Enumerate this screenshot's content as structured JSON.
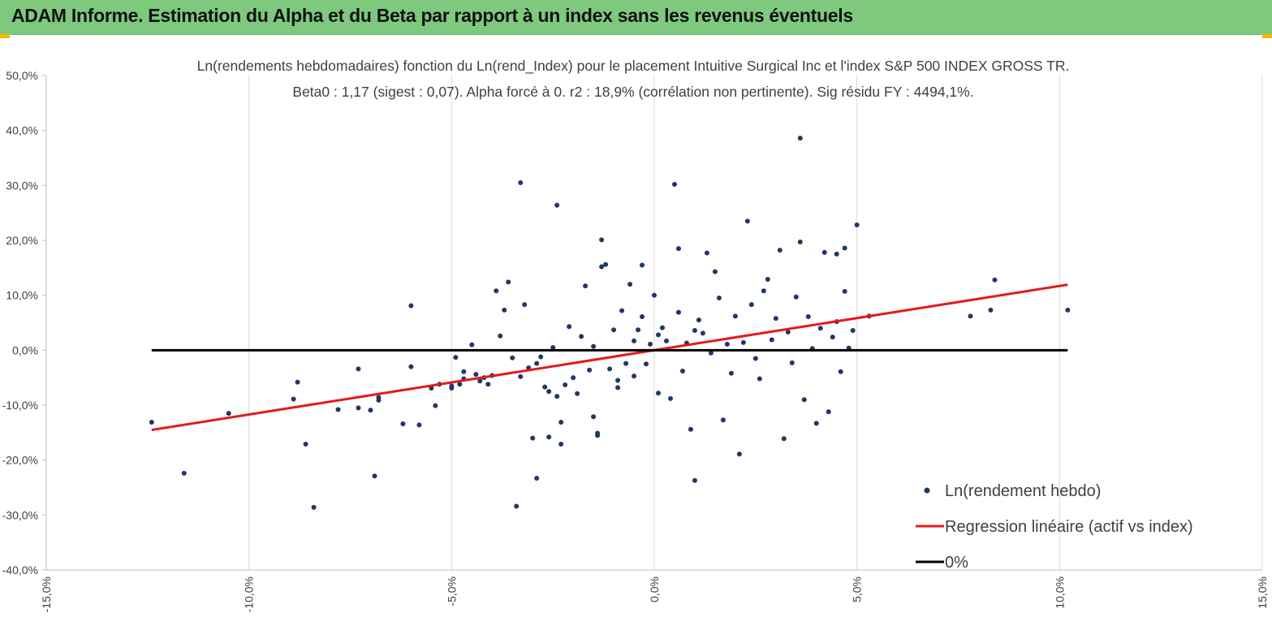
{
  "banner": {
    "title": "ADAM Informe. Estimation du Alpha et du Beta par rapport à un index sans les revenus éventuels",
    "color": "#7fc97f"
  },
  "chart_data": {
    "type": "scatter",
    "title": "Ln(rendements hebdomadaires) fonction du Ln(rend_Index) pour le placement Intuitive Surgical Inc et l'index S&P 500 INDEX GROSS TR.",
    "subtitle": "Beta0 : 1,17 (sigest : 0,07). Alpha forcé à 0. r2 : 18,9% (corrélation non pertinente). Sig résidu FY : 4494,1%.",
    "xlim": [
      -0.15,
      0.15
    ],
    "ylim": [
      -0.4,
      0.5
    ],
    "x_ticks": [
      "-15,0%",
      "-10,0%",
      "-5,0%",
      "0,0%",
      "5,0%",
      "10,0%",
      "15,0%"
    ],
    "y_ticks": [
      "50,0%",
      "40,0%",
      "30,0%",
      "20,0%",
      "10,0%",
      "0,0%",
      "-10,0%",
      "-20,0%",
      "-30,0%",
      "-40,0%"
    ],
    "grid": "vertical",
    "legend_position": "bottom-right",
    "series": [
      {
        "name": "Ln(rendement hebdo)",
        "kind": "scatter",
        "color": "#1f3864",
        "points": [
          [
            -0.124,
            -0.131
          ],
          [
            -0.116,
            -0.224
          ],
          [
            -0.105,
            -0.115
          ],
          [
            -0.089,
            -0.089
          ],
          [
            -0.088,
            -0.058
          ],
          [
            -0.086,
            -0.171
          ],
          [
            -0.084,
            -0.286
          ],
          [
            -0.078,
            -0.108
          ],
          [
            -0.073,
            -0.034
          ],
          [
            -0.073,
            -0.105
          ],
          [
            -0.07,
            -0.109
          ],
          [
            -0.069,
            -0.229
          ],
          [
            -0.068,
            -0.086
          ],
          [
            -0.068,
            -0.091
          ],
          [
            -0.062,
            -0.134
          ],
          [
            -0.06,
            -0.03
          ],
          [
            -0.06,
            0.081
          ],
          [
            -0.058,
            -0.136
          ],
          [
            -0.055,
            -0.069
          ],
          [
            -0.054,
            -0.101
          ],
          [
            -0.053,
            -0.062
          ],
          [
            -0.05,
            -0.069
          ],
          [
            -0.05,
            -0.065
          ],
          [
            -0.049,
            -0.013
          ],
          [
            -0.048,
            -0.062
          ],
          [
            -0.047,
            -0.039
          ],
          [
            -0.047,
            -0.052
          ],
          [
            -0.045,
            0.01
          ],
          [
            -0.044,
            -0.044
          ],
          [
            -0.043,
            -0.056
          ],
          [
            -0.042,
            -0.05
          ],
          [
            -0.041,
            -0.062
          ],
          [
            -0.04,
            -0.046
          ],
          [
            -0.039,
            0.108
          ],
          [
            -0.038,
            0.026
          ],
          [
            -0.037,
            0.073
          ],
          [
            -0.036,
            0.124
          ],
          [
            -0.035,
            -0.014
          ],
          [
            -0.034,
            -0.284
          ],
          [
            -0.033,
            0.305
          ],
          [
            -0.033,
            -0.048
          ],
          [
            -0.032,
            0.083
          ],
          [
            -0.031,
            -0.032
          ],
          [
            -0.03,
            -0.16
          ],
          [
            -0.029,
            -0.024
          ],
          [
            -0.029,
            -0.233
          ],
          [
            -0.028,
            -0.012
          ],
          [
            -0.027,
            -0.067
          ],
          [
            -0.026,
            -0.075
          ],
          [
            -0.026,
            -0.158
          ],
          [
            -0.025,
            0.005
          ],
          [
            -0.024,
            -0.084
          ],
          [
            -0.024,
            0.264
          ],
          [
            -0.023,
            -0.171
          ],
          [
            -0.023,
            -0.131
          ],
          [
            -0.022,
            -0.063
          ],
          [
            -0.021,
            0.043
          ],
          [
            -0.02,
            -0.05
          ],
          [
            -0.019,
            -0.079
          ],
          [
            -0.018,
            0.025
          ],
          [
            -0.017,
            0.117
          ],
          [
            -0.016,
            -0.036
          ],
          [
            -0.015,
            -0.121
          ],
          [
            -0.015,
            0.007
          ],
          [
            -0.014,
            -0.155
          ],
          [
            -0.014,
            -0.151
          ],
          [
            -0.013,
            0.152
          ],
          [
            -0.013,
            0.201
          ],
          [
            -0.012,
            0.156
          ],
          [
            -0.011,
            -0.034
          ],
          [
            -0.01,
            0.037
          ],
          [
            -0.009,
            -0.055
          ],
          [
            -0.009,
            -0.068
          ],
          [
            -0.008,
            0.072
          ],
          [
            -0.007,
            -0.024
          ],
          [
            -0.006,
            0.12
          ],
          [
            -0.005,
            0.017
          ],
          [
            -0.005,
            -0.047
          ],
          [
            -0.004,
            0.037
          ],
          [
            -0.003,
            0.061
          ],
          [
            -0.003,
            0.155
          ],
          [
            -0.002,
            -0.025
          ],
          [
            -0.001,
            0.011
          ],
          [
            0.0,
            0.1
          ],
          [
            0.001,
            -0.078
          ],
          [
            0.001,
            0.028
          ],
          [
            0.002,
            0.041
          ],
          [
            0.003,
            0.017
          ],
          [
            0.004,
            -0.088
          ],
          [
            0.005,
            0.302
          ],
          [
            0.006,
            0.185
          ],
          [
            0.006,
            0.069
          ],
          [
            0.007,
            -0.038
          ],
          [
            0.008,
            0.013
          ],
          [
            0.009,
            -0.144
          ],
          [
            0.01,
            0.036
          ],
          [
            0.01,
            -0.237
          ],
          [
            0.011,
            0.055
          ],
          [
            0.012,
            0.031
          ],
          [
            0.013,
            0.177
          ],
          [
            0.014,
            -0.005
          ],
          [
            0.015,
            0.143
          ],
          [
            0.016,
            0.095
          ],
          [
            0.017,
            -0.127
          ],
          [
            0.018,
            0.011
          ],
          [
            0.019,
            -0.042
          ],
          [
            0.02,
            0.062
          ],
          [
            0.021,
            -0.189
          ],
          [
            0.022,
            0.014
          ],
          [
            0.023,
            0.235
          ],
          [
            0.024,
            0.083
          ],
          [
            0.025,
            -0.015
          ],
          [
            0.026,
            -0.052
          ],
          [
            0.027,
            0.108
          ],
          [
            0.028,
            0.129
          ],
          [
            0.029,
            0.019
          ],
          [
            0.03,
            0.058
          ],
          [
            0.031,
            0.182
          ],
          [
            0.032,
            -0.161
          ],
          [
            0.033,
            0.033
          ],
          [
            0.034,
            -0.023
          ],
          [
            0.035,
            0.097
          ],
          [
            0.036,
            0.197
          ],
          [
            0.036,
            0.386
          ],
          [
            0.037,
            -0.09
          ],
          [
            0.038,
            0.061
          ],
          [
            0.039,
            0.003
          ],
          [
            0.04,
            -0.133
          ],
          [
            0.041,
            0.04
          ],
          [
            0.042,
            0.178
          ],
          [
            0.043,
            -0.112
          ],
          [
            0.044,
            0.024
          ],
          [
            0.045,
            0.052
          ],
          [
            0.045,
            0.175
          ],
          [
            0.046,
            -0.039
          ],
          [
            0.047,
            0.186
          ],
          [
            0.047,
            0.107
          ],
          [
            0.048,
            0.004
          ],
          [
            0.049,
            0.036
          ],
          [
            0.05,
            0.228
          ],
          [
            0.053,
            0.062
          ],
          [
            0.078,
            0.062
          ],
          [
            0.083,
            0.073
          ],
          [
            0.084,
            0.128
          ],
          [
            0.102,
            0.073
          ]
        ]
      },
      {
        "name": "Regression linéaire (actif vs index)",
        "kind": "line",
        "color": "#e41a1c",
        "points": [
          [
            -0.124,
            -0.1451
          ],
          [
            0.102,
            0.1193
          ]
        ]
      },
      {
        "name": "0%",
        "kind": "line",
        "color": "#000000",
        "points": [
          [
            -0.124,
            0.0
          ],
          [
            0.102,
            0.0
          ]
        ]
      }
    ]
  }
}
